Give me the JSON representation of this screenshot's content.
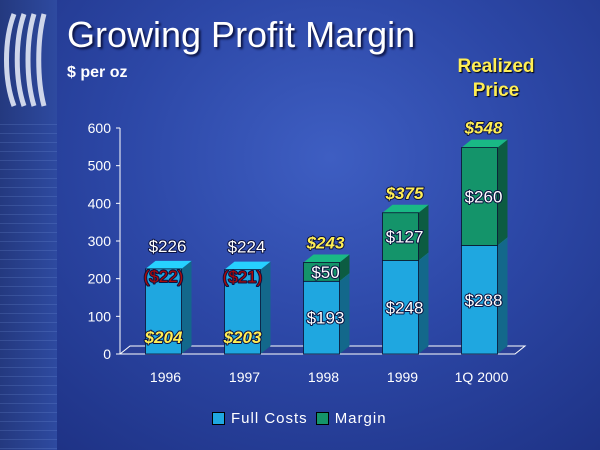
{
  "slide": {
    "title": "Growing Profit Margin",
    "unit_label": "$ per oz",
    "realized_price_label_line1": "Realized",
    "realized_price_label_line2": "Price"
  },
  "colors": {
    "full_costs": "#1fa7e0",
    "margin": "#14946a",
    "realized_price_text": "#ffee55",
    "negative_margin_text": "#aa0a0a"
  },
  "chart_data": {
    "type": "bar",
    "stacked": true,
    "three_d": true,
    "categories": [
      "1996",
      "1997",
      "1998",
      "1999",
      "1Q 2000"
    ],
    "series": [
      {
        "name": "Full Costs",
        "values": [
          226,
          224,
          193,
          248,
          288
        ],
        "labels": [
          "$226",
          "$224",
          "$193",
          "$248",
          "$288"
        ]
      },
      {
        "name": "Margin",
        "values": [
          -22,
          -21,
          50,
          127,
          260
        ],
        "labels": [
          "($22)",
          "($21)",
          "$50",
          "$127",
          "$260"
        ]
      }
    ],
    "realized_price": {
      "values": [
        204,
        203,
        243,
        375,
        548
      ],
      "labels": [
        "$204",
        "$203",
        "$243",
        "$375",
        "$548"
      ]
    },
    "yticks": [
      "0",
      "100",
      "200",
      "300",
      "400",
      "500",
      "600"
    ],
    "ylim": [
      0,
      600
    ],
    "legend_position": "bottom",
    "grid": false
  }
}
